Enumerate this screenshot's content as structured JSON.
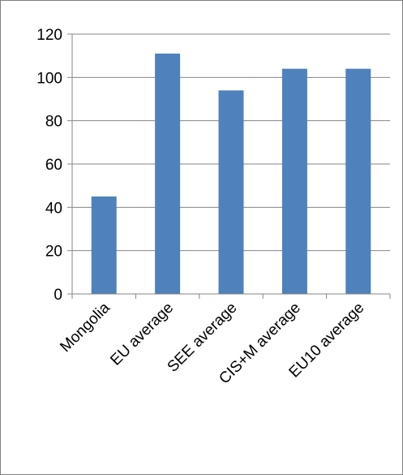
{
  "chart_data": {
    "type": "bar",
    "categories": [
      "Mongolia",
      "EU average",
      "SEE average",
      "CIS+M average",
      "EU10 average"
    ],
    "values": [
      45,
      111,
      94,
      104,
      104
    ],
    "title": "",
    "xlabel": "",
    "ylabel": "",
    "ylim": [
      0,
      120
    ],
    "yticks": [
      0,
      20,
      40,
      60,
      80,
      100,
      120
    ],
    "ytick_labels": [
      "0",
      "20",
      "40",
      "60",
      "80",
      "100",
      "120"
    ],
    "grid": true,
    "legend": "none",
    "colors": {
      "bar": "#4F81BD",
      "gridline": "#868686",
      "axis": "#868686",
      "border": "#808080"
    }
  }
}
